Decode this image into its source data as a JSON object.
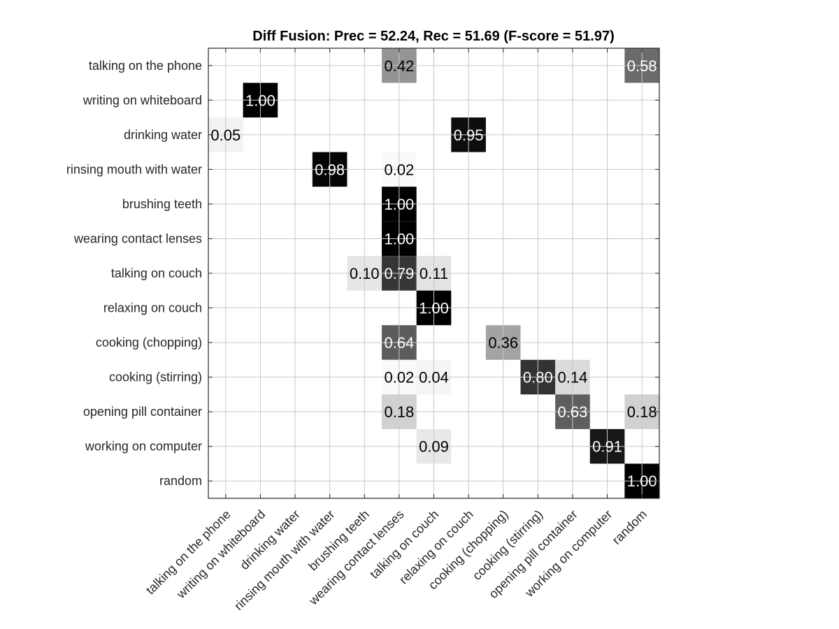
{
  "chart_data": {
    "type": "heatmap",
    "title": "Diff Fusion: Prec = 52.24, Rec = 51.69 (F-score = 51.97)",
    "colormap": "gray-reversed",
    "clim": [
      0,
      1
    ],
    "row_labels": [
      "talking on the phone",
      "writing on whiteboard",
      "drinking water",
      "rinsing mouth with water",
      "brushing teeth",
      "wearing contact lenses",
      "talking on couch",
      "relaxing on couch",
      "cooking (chopping)",
      "cooking (stirring)",
      "opening pill container",
      "working on computer",
      "random"
    ],
    "col_labels": [
      "talking on the phone",
      "writing on whiteboard",
      "drinking water",
      "rinsing mouth with water",
      "brushing teeth",
      "wearing contact lenses",
      "talking on couch",
      "relaxing on couch",
      "cooking (chopping)",
      "cooking (stirring)",
      "opening pill container",
      "working on computer",
      "random"
    ],
    "cells": [
      {
        "row": 0,
        "col": 5,
        "value": 0.42
      },
      {
        "row": 0,
        "col": 12,
        "value": 0.58
      },
      {
        "row": 1,
        "col": 1,
        "value": 1.0
      },
      {
        "row": 2,
        "col": 0,
        "value": 0.05
      },
      {
        "row": 2,
        "col": 7,
        "value": 0.95
      },
      {
        "row": 3,
        "col": 3,
        "value": 0.98
      },
      {
        "row": 3,
        "col": 5,
        "value": 0.02
      },
      {
        "row": 4,
        "col": 5,
        "value": 1.0
      },
      {
        "row": 5,
        "col": 5,
        "value": 1.0
      },
      {
        "row": 6,
        "col": 4,
        "value": 0.1
      },
      {
        "row": 6,
        "col": 5,
        "value": 0.79
      },
      {
        "row": 6,
        "col": 6,
        "value": 0.11
      },
      {
        "row": 7,
        "col": 6,
        "value": 1.0
      },
      {
        "row": 8,
        "col": 5,
        "value": 0.64
      },
      {
        "row": 8,
        "col": 8,
        "value": 0.36
      },
      {
        "row": 9,
        "col": 5,
        "value": 0.02
      },
      {
        "row": 9,
        "col": 6,
        "value": 0.04
      },
      {
        "row": 9,
        "col": 9,
        "value": 0.8
      },
      {
        "row": 9,
        "col": 10,
        "value": 0.14
      },
      {
        "row": 10,
        "col": 5,
        "value": 0.18
      },
      {
        "row": 10,
        "col": 10,
        "value": 0.63
      },
      {
        "row": 10,
        "col": 12,
        "value": 0.18
      },
      {
        "row": 11,
        "col": 6,
        "value": 0.09
      },
      {
        "row": 11,
        "col": 11,
        "value": 0.91
      },
      {
        "row": 12,
        "col": 12,
        "value": 1.0
      }
    ],
    "grid": true
  }
}
